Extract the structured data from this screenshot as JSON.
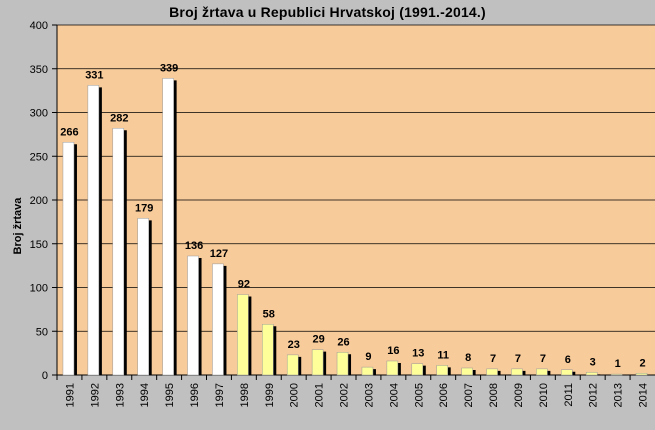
{
  "chart_data": {
    "type": "bar",
    "title": "Broj žrtava u Republici Hrvatskoj (1991.-2014.)",
    "ylabel": "Broj žrtava",
    "xlabel": "",
    "categories": [
      "1991",
      "1992",
      "1993",
      "1994",
      "1995",
      "1996",
      "1997",
      "1998",
      "1999",
      "2000",
      "2001",
      "2002",
      "2003",
      "2004",
      "2005",
      "2006",
      "2007",
      "2008",
      "2009",
      "2010",
      "2011",
      "2012",
      "2013",
      "2014"
    ],
    "values": [
      266,
      331,
      282,
      179,
      339,
      136,
      127,
      92,
      58,
      23,
      29,
      26,
      9,
      16,
      13,
      11,
      8,
      7,
      7,
      7,
      6,
      3,
      1,
      2
    ],
    "ylim": [
      0,
      400
    ],
    "yticks": [
      0,
      50,
      100,
      150,
      200,
      250,
      300,
      350,
      400
    ],
    "grid": true,
    "legend": "none",
    "colors": {
      "background": "#c0c0c0",
      "plot_area": "#f8cb9a",
      "bars_1991_1997": "#ffffff",
      "bars_1998_2014": "#ffff99",
      "shadow": "#000000",
      "gridline": "#000000"
    }
  }
}
